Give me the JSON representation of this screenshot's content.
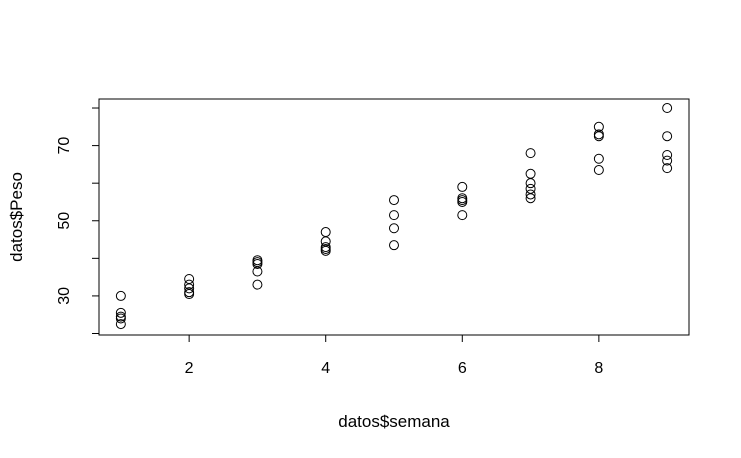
{
  "chart_data": {
    "type": "scatter",
    "title": "",
    "xlabel": "datos$semana",
    "ylabel": "datos$Peso",
    "xlim": [
      0.68,
      9.32
    ],
    "ylim": [
      19.6,
      82.4
    ],
    "x_ticks": [
      2,
      4,
      6,
      8
    ],
    "x_tick_labels": [
      "2",
      "4",
      "6",
      "8"
    ],
    "y_ticks": [
      20,
      30,
      40,
      50,
      60,
      70,
      80
    ],
    "y_tick_labels": [
      "",
      "30",
      "",
      "50",
      "",
      "70",
      ""
    ],
    "grid": false,
    "marker": "open-circle",
    "points": [
      {
        "x": 1,
        "y": 30.0
      },
      {
        "x": 1,
        "y": 25.5
      },
      {
        "x": 1,
        "y": 24.5
      },
      {
        "x": 1,
        "y": 24.0
      },
      {
        "x": 1,
        "y": 22.5
      },
      {
        "x": 2,
        "y": 34.5
      },
      {
        "x": 2,
        "y": 33.0
      },
      {
        "x": 2,
        "y": 32.0
      },
      {
        "x": 2,
        "y": 31.0
      },
      {
        "x": 2,
        "y": 30.5
      },
      {
        "x": 3,
        "y": 39.5
      },
      {
        "x": 3,
        "y": 39.0
      },
      {
        "x": 3,
        "y": 38.5
      },
      {
        "x": 3,
        "y": 36.5
      },
      {
        "x": 3,
        "y": 33.0
      },
      {
        "x": 4,
        "y": 47.0
      },
      {
        "x": 4,
        "y": 44.5
      },
      {
        "x": 4,
        "y": 43.0
      },
      {
        "x": 4,
        "y": 42.5
      },
      {
        "x": 4,
        "y": 42.0
      },
      {
        "x": 5,
        "y": 55.5
      },
      {
        "x": 5,
        "y": 51.5
      },
      {
        "x": 5,
        "y": 48.0
      },
      {
        "x": 5,
        "y": 43.5
      },
      {
        "x": 6,
        "y": 59.0
      },
      {
        "x": 6,
        "y": 56.0
      },
      {
        "x": 6,
        "y": 55.5
      },
      {
        "x": 6,
        "y": 55.0
      },
      {
        "x": 6,
        "y": 51.5
      },
      {
        "x": 7,
        "y": 68.0
      },
      {
        "x": 7,
        "y": 62.5
      },
      {
        "x": 7,
        "y": 60.0
      },
      {
        "x": 7,
        "y": 58.5
      },
      {
        "x": 7,
        "y": 57.0
      },
      {
        "x": 7,
        "y": 56.0
      },
      {
        "x": 8,
        "y": 75.0
      },
      {
        "x": 8,
        "y": 73.0
      },
      {
        "x": 8,
        "y": 72.5
      },
      {
        "x": 8,
        "y": 66.5
      },
      {
        "x": 8,
        "y": 63.5
      },
      {
        "x": 9,
        "y": 80.0
      },
      {
        "x": 9,
        "y": 72.5
      },
      {
        "x": 9,
        "y": 67.5
      },
      {
        "x": 9,
        "y": 66.0
      },
      {
        "x": 9,
        "y": 64.0
      }
    ]
  }
}
